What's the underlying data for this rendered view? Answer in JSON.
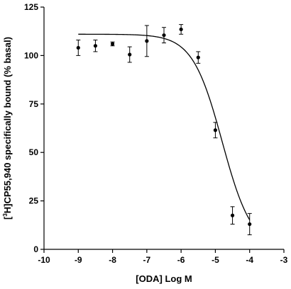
{
  "chart_data": {
    "type": "scatter",
    "xlabel": "[ODA] Log M",
    "ylabel": {
      "prefix": "[",
      "superscript": "3",
      "suffix": "H]CP55,940 specifically bound (% basal)"
    },
    "xlim": [
      -10,
      -3
    ],
    "ylim": [
      0,
      125
    ],
    "xticks": [
      "-10",
      "-9",
      "-8",
      "-7",
      "-6",
      "-5",
      "-4",
      "-3"
    ],
    "yticks": [
      "0",
      "25",
      "50",
      "75",
      "100",
      "125"
    ],
    "grid": false,
    "legend": "none",
    "series": [
      {
        "points": [
          {
            "x": -9.0,
            "y": 104,
            "err": 4
          },
          {
            "x": -8.5,
            "y": 105,
            "err": 3
          },
          {
            "x": -8.0,
            "y": 106,
            "err": 1
          },
          {
            "x": -7.5,
            "y": 100.5,
            "err": 4
          },
          {
            "x": -7.0,
            "y": 107.5,
            "err": 8
          },
          {
            "x": -6.5,
            "y": 110.5,
            "err": 4
          },
          {
            "x": -6.0,
            "y": 113.5,
            "err": 2.5
          },
          {
            "x": -5.5,
            "y": 99,
            "err": 3
          },
          {
            "x": -5.0,
            "y": 61.5,
            "err": 4
          },
          {
            "x": -4.5,
            "y": 17.5,
            "err": 4.5
          },
          {
            "x": -4.0,
            "y": 13,
            "err": 5.5
          }
        ]
      }
    ],
    "fit_curve": {
      "type": "sigmoidal dose-response",
      "top": 111,
      "bottom": 0,
      "logEC50": -4.8,
      "hill_slope": -1,
      "x_range": [
        -9,
        -4
      ]
    },
    "colors": {
      "marks": "#000000",
      "background": "#ffffff"
    }
  }
}
